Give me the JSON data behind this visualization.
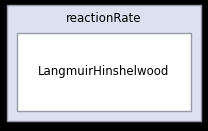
{
  "outer_box_label": "reactionRate",
  "inner_box_label": "LangmuirHinshelwood",
  "outer_bg_color": "#dde1ef",
  "inner_bg_color": "#ffffff",
  "outer_border_color": "#9999aa",
  "inner_border_color": "#9999aa",
  "text_color": "#000000",
  "outer_label_fontsize": 8.5,
  "inner_label_fontsize": 8.5,
  "fig_bg_color": "#000000",
  "diagram_bg_color": "#dde1ef"
}
